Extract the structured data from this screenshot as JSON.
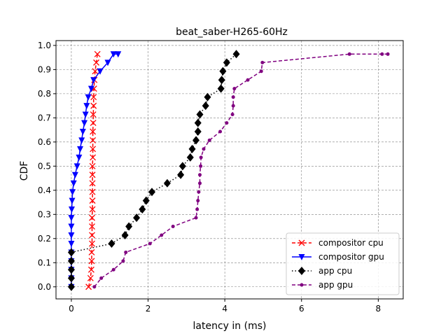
{
  "chart_data": {
    "type": "line",
    "title": "beat_saber-H265-60Hz",
    "xlabel": "latency in (ms)",
    "ylabel": "CDF",
    "xlim": [
      -0.4,
      8.65
    ],
    "ylim": [
      -0.05,
      1.02
    ],
    "xticks": [
      0,
      2,
      4,
      6,
      8
    ],
    "yticks": [
      0.0,
      0.1,
      0.2,
      0.3,
      0.4,
      0.5,
      0.6,
      0.7,
      0.8,
      0.9,
      1.0
    ],
    "grid": true,
    "legend_position": "lower-right",
    "series": [
      {
        "name": "compositor cpu",
        "color": "#ff0000",
        "marker": "x",
        "line": "dashed",
        "x": [
          0.45,
          0.5,
          0.52,
          0.53,
          0.53,
          0.54,
          0.54,
          0.54,
          0.54,
          0.55,
          0.55,
          0.55,
          0.55,
          0.55,
          0.55,
          0.56,
          0.56,
          0.56,
          0.56,
          0.57,
          0.57,
          0.58,
          0.58,
          0.59,
          0.6,
          0.62,
          0.65,
          0.68
        ],
        "y": [
          0.0,
          0.036,
          0.071,
          0.107,
          0.143,
          0.179,
          0.214,
          0.25,
          0.286,
          0.321,
          0.357,
          0.393,
          0.429,
          0.464,
          0.5,
          0.536,
          0.571,
          0.607,
          0.643,
          0.679,
          0.714,
          0.75,
          0.786,
          0.821,
          0.857,
          0.893,
          0.929,
          0.964
        ]
      },
      {
        "name": "compositor gpu",
        "color": "#0000ff",
        "marker": "triangle-down",
        "line": "solid",
        "x": [
          0.0,
          0.0,
          0.0,
          0.0,
          0.0,
          0.0,
          0.0,
          0.0,
          0.0,
          0.01,
          0.02,
          0.03,
          0.06,
          0.1,
          0.15,
          0.2,
          0.23,
          0.27,
          0.3,
          0.34,
          0.37,
          0.4,
          0.44,
          0.52,
          0.58,
          0.75,
          0.95,
          1.1,
          1.22
        ],
        "y": [
          0.0,
          0.036,
          0.071,
          0.107,
          0.143,
          0.179,
          0.214,
          0.25,
          0.286,
          0.321,
          0.357,
          0.393,
          0.429,
          0.464,
          0.5,
          0.536,
          0.571,
          0.607,
          0.643,
          0.679,
          0.714,
          0.75,
          0.786,
          0.821,
          0.857,
          0.893,
          0.929,
          0.964,
          0.964
        ]
      },
      {
        "name": "app cpu",
        "color": "#000000",
        "marker": "diamond",
        "line": "dotted",
        "x": [
          0.0,
          0.0,
          0.0,
          0.0,
          0.0,
          1.05,
          1.4,
          1.5,
          1.7,
          1.85,
          1.95,
          2.1,
          2.5,
          2.85,
          2.9,
          3.1,
          3.15,
          3.25,
          3.3,
          3.3,
          3.35,
          3.5,
          3.55,
          3.9,
          3.92,
          3.95,
          4.05,
          4.3
        ],
        "y": [
          0.0,
          0.036,
          0.071,
          0.107,
          0.143,
          0.179,
          0.214,
          0.25,
          0.286,
          0.321,
          0.357,
          0.393,
          0.429,
          0.464,
          0.5,
          0.536,
          0.571,
          0.607,
          0.643,
          0.679,
          0.714,
          0.75,
          0.786,
          0.821,
          0.857,
          0.893,
          0.929,
          0.964
        ]
      },
      {
        "name": "app gpu",
        "color": "#800080",
        "marker": "circle",
        "line": "dashed",
        "x": [
          0.6,
          0.78,
          1.1,
          1.35,
          1.42,
          2.05,
          2.35,
          2.65,
          3.25,
          3.28,
          3.3,
          3.32,
          3.35,
          3.35,
          3.37,
          3.38,
          3.45,
          3.6,
          3.88,
          4.05,
          4.2,
          4.22,
          4.22,
          4.25,
          4.6,
          4.95,
          4.98,
          7.25,
          8.1,
          8.25
        ],
        "y": [
          0.0,
          0.036,
          0.071,
          0.107,
          0.143,
          0.179,
          0.214,
          0.25,
          0.286,
          0.321,
          0.357,
          0.393,
          0.429,
          0.464,
          0.5,
          0.536,
          0.571,
          0.607,
          0.643,
          0.679,
          0.714,
          0.75,
          0.786,
          0.821,
          0.857,
          0.893,
          0.929,
          0.964,
          0.964,
          0.964
        ]
      }
    ]
  }
}
